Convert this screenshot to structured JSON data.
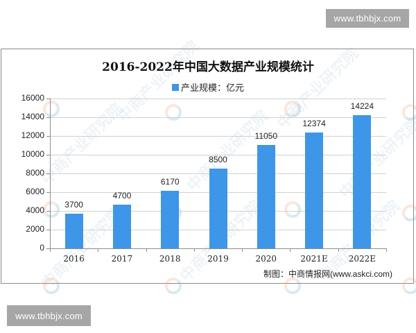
{
  "badges": {
    "top": "www.tbhbjx.com",
    "bottom": "www.tbhbjx.com"
  },
  "colors": {
    "bar": "#3d96e8",
    "badge_bg": "#a6a6a6",
    "frame": "#8a8a8a"
  },
  "watermark": {
    "text": "中商产业研究院"
  },
  "source": {
    "label": "制图：中商情报网",
    "url": "(www.askci.com)"
  },
  "chart_data": {
    "type": "bar",
    "title": "2016-2022年中国大数据产业规模统计",
    "xlabel": "",
    "ylabel": "",
    "legend": [
      "产业规模：亿元"
    ],
    "legend_position": "top",
    "grid": true,
    "ylim": [
      0,
      16000
    ],
    "yticks": [
      0,
      2000,
      4000,
      6000,
      8000,
      10000,
      12000,
      14000,
      16000
    ],
    "categories": [
      "2016",
      "2017",
      "2018",
      "2019",
      "2020",
      "2021E",
      "2022E"
    ],
    "series": [
      {
        "name": "产业规模：亿元",
        "values": [
          3700,
          4700,
          6170,
          8500,
          11050,
          12374,
          14224
        ]
      }
    ],
    "data_labels": [
      "3700",
      "4700",
      "6170",
      "8500",
      "11050",
      "12374",
      "14224"
    ]
  }
}
